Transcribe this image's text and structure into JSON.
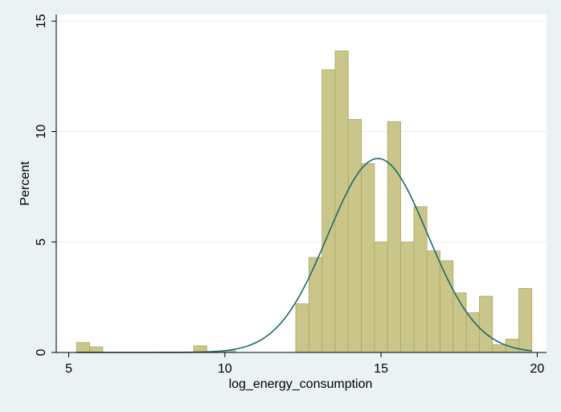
{
  "chart_data": {
    "type": "bar",
    "subtype": "histogram_with_normal_density",
    "title": "",
    "xlabel": "log_energy_consumption",
    "ylabel": "Percent",
    "xlim": [
      4.6,
      20.3
    ],
    "ylim": [
      0,
      15.3
    ],
    "xticks": [
      5,
      10,
      15,
      20
    ],
    "yticks": [
      0,
      5,
      10,
      15
    ],
    "ytick_rotation": "vertical",
    "grid": "horizontal",
    "legend": "none",
    "bin_width": 0.42,
    "bins": [
      {
        "x0": 5.25,
        "value": 0.45
      },
      {
        "x0": 5.67,
        "value": 0.25
      },
      {
        "x0": 9.0,
        "value": 0.3
      },
      {
        "x0": 9.92,
        "value": 0.08
      },
      {
        "x0": 12.27,
        "value": 2.2
      },
      {
        "x0": 12.69,
        "value": 4.3
      },
      {
        "x0": 13.11,
        "value": 12.8
      },
      {
        "x0": 13.53,
        "value": 13.65
      },
      {
        "x0": 13.95,
        "value": 10.55
      },
      {
        "x0": 14.37,
        "value": 8.55
      },
      {
        "x0": 14.79,
        "value": 5.0
      },
      {
        "x0": 15.21,
        "value": 10.45
      },
      {
        "x0": 15.63,
        "value": 5.0
      },
      {
        "x0": 16.05,
        "value": 6.6
      },
      {
        "x0": 16.47,
        "value": 4.6
      },
      {
        "x0": 16.89,
        "value": 4.15
      },
      {
        "x0": 17.31,
        "value": 2.7
      },
      {
        "x0": 17.73,
        "value": 1.8
      },
      {
        "x0": 18.15,
        "value": 2.55
      },
      {
        "x0": 18.57,
        "value": 0.35
      },
      {
        "x0": 18.99,
        "value": 0.6
      },
      {
        "x0": 19.41,
        "value": 2.9
      }
    ],
    "normal_curve": {
      "mean": 14.9,
      "sd": 1.6,
      "scale_percent": 8.78,
      "x_range": [
        5.25,
        19.83
      ]
    },
    "colors": {
      "bar_fill": "#cac589",
      "bar_stroke": "#aea766",
      "curve": "#1c6b6b",
      "plot_bg": "#ffffff",
      "outer_bg": "#eaf2f3",
      "grid": "#e6ecee",
      "axis": "#000000"
    }
  }
}
